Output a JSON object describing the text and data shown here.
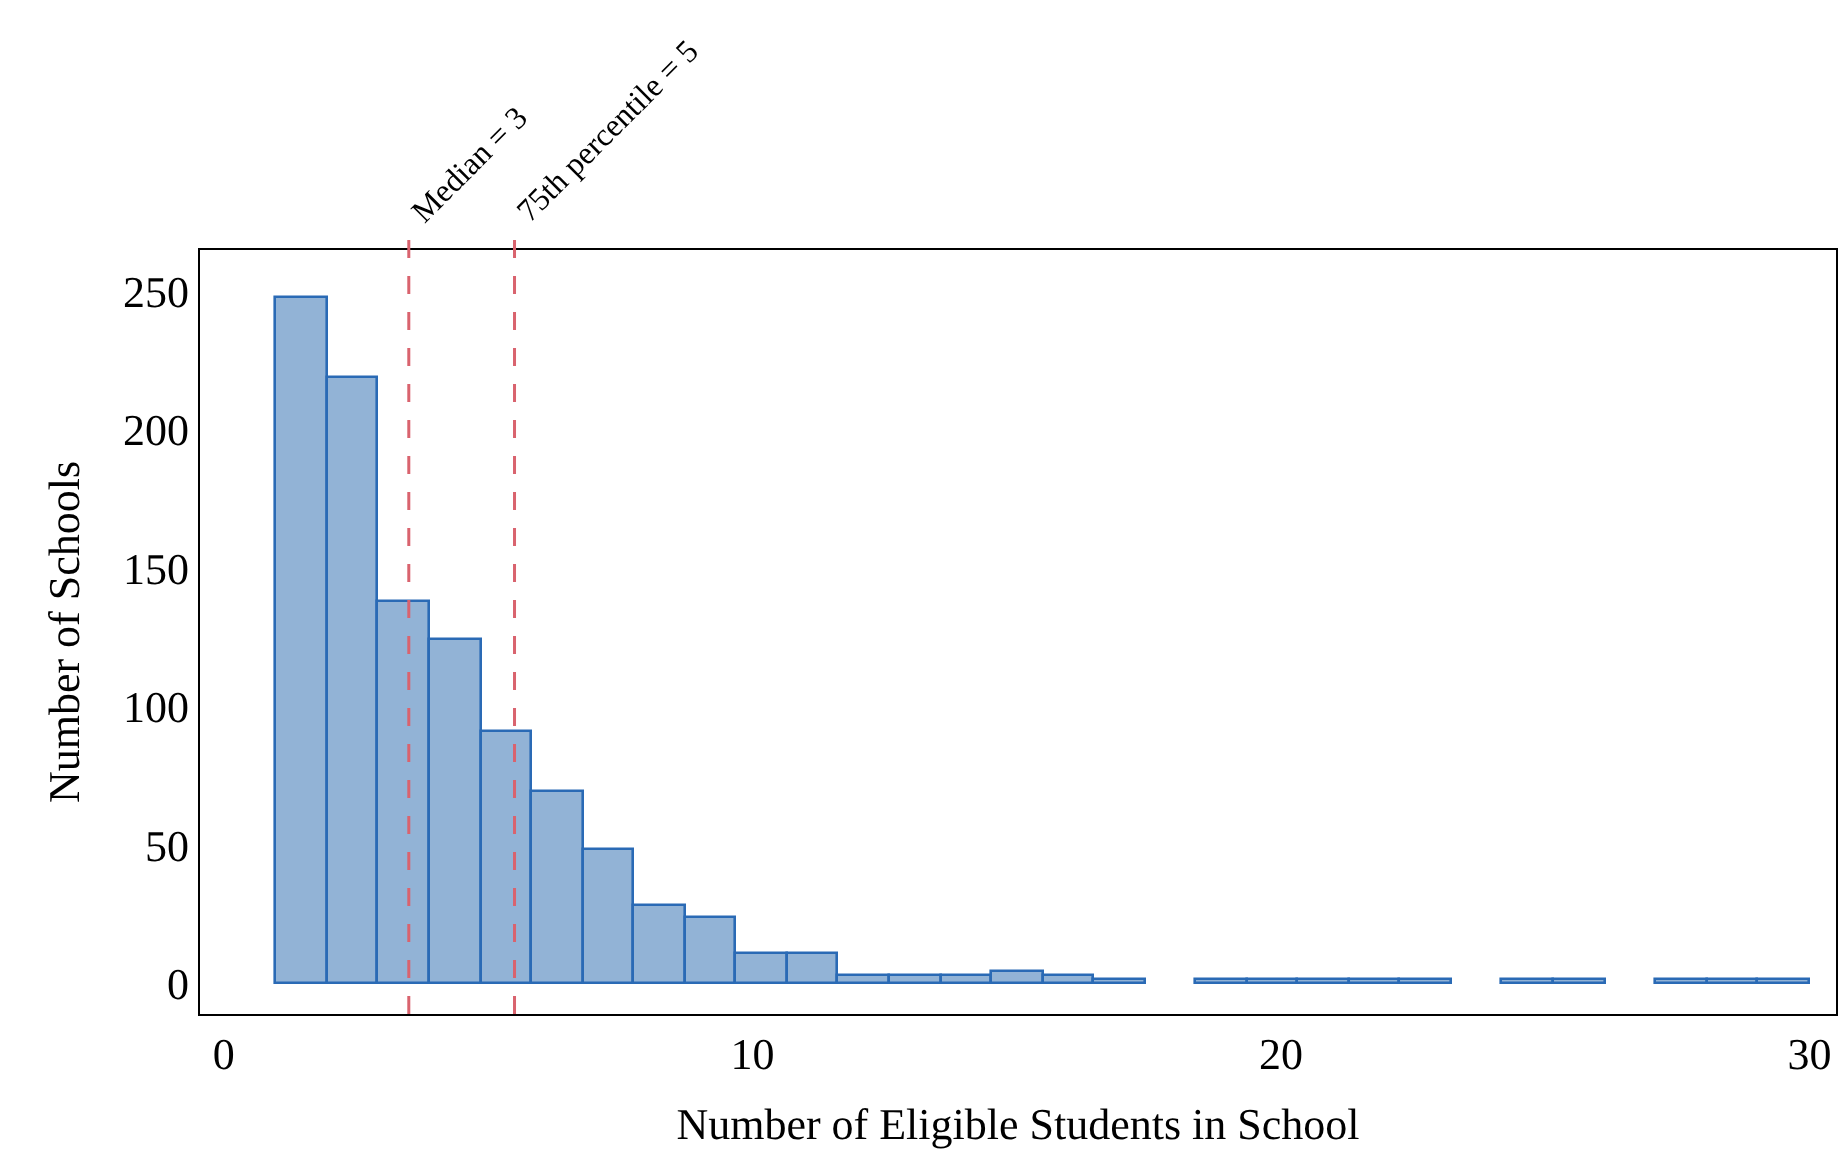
{
  "chart_data": {
    "type": "histogram",
    "xlabel": "Number of Eligible Students in School",
    "ylabel": "Number of Schools",
    "bins": [
      1,
      1.97,
      2.93,
      3.9,
      4.87,
      5.83,
      6.8,
      7.77,
      8.73,
      9.7,
      10.67,
      11.63,
      12.6,
      13.57,
      14.53,
      15.5,
      16.47,
      17.43,
      18.4,
      19.37,
      20.33,
      21.3,
      22.27,
      23.23,
      24.2,
      25.17,
      26.13,
      27.1,
      28.07,
      29.03,
      30
    ],
    "values": [
      248,
      219,
      138,
      124,
      91,
      69,
      48,
      28,
      24,
      11,
      11,
      3,
      3,
      3,
      4,
      3,
      1,
      0,
      1,
      1,
      1,
      1,
      1,
      0,
      1,
      1,
      0,
      1,
      1,
      1
    ],
    "color": "#92b3d6",
    "xlim": [
      -0.45,
      30.5
    ],
    "ylim": [
      -11,
      265
    ],
    "xticks": [
      0,
      10,
      20,
      30
    ],
    "yticks": [
      0,
      50,
      100,
      150,
      200,
      250
    ],
    "ref_lines": [
      {
        "axis": "x",
        "value": 3.5,
        "label": "Median = 3",
        "color": "#d9636e",
        "line_style": "dashed"
      },
      {
        "axis": "x",
        "value": 5.5,
        "label": "75th percentile = 5",
        "color": "#d9636e",
        "line_style": "dashed"
      }
    ]
  }
}
